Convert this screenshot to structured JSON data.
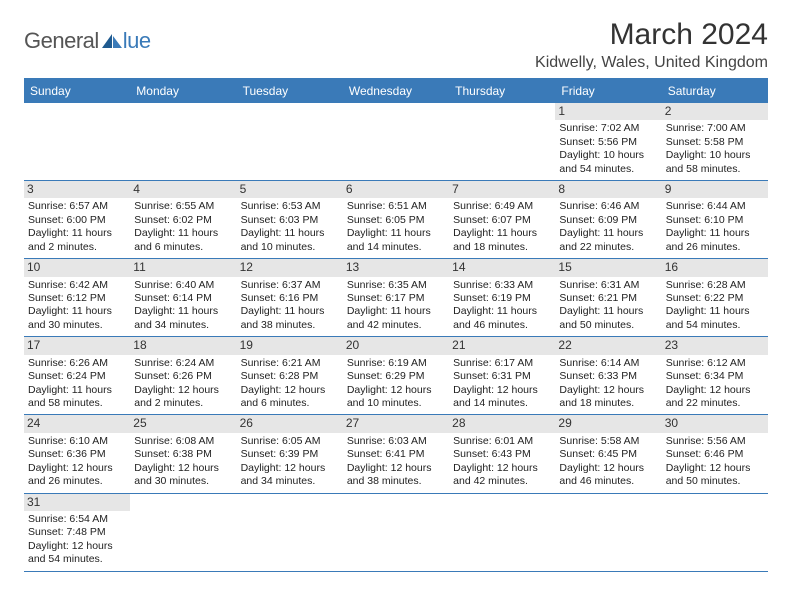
{
  "logo": {
    "word1": "General",
    "word2": "lue"
  },
  "title": "March 2024",
  "location": "Kidwelly, Wales, United Kingdom",
  "colors": {
    "accent": "#3a7ab8",
    "header_text": "#ffffff",
    "date_bg": "#e6e6e6",
    "text": "#333333"
  },
  "day_names": [
    "Sunday",
    "Monday",
    "Tuesday",
    "Wednesday",
    "Thursday",
    "Friday",
    "Saturday"
  ],
  "weeks": [
    [
      {
        "date": "",
        "empty": true
      },
      {
        "date": "",
        "empty": true
      },
      {
        "date": "",
        "empty": true
      },
      {
        "date": "",
        "empty": true
      },
      {
        "date": "",
        "empty": true
      },
      {
        "date": "1",
        "sunrise": "Sunrise: 7:02 AM",
        "sunset": "Sunset: 5:56 PM",
        "daylight": "Daylight: 10 hours and 54 minutes."
      },
      {
        "date": "2",
        "sunrise": "Sunrise: 7:00 AM",
        "sunset": "Sunset: 5:58 PM",
        "daylight": "Daylight: 10 hours and 58 minutes."
      }
    ],
    [
      {
        "date": "3",
        "sunrise": "Sunrise: 6:57 AM",
        "sunset": "Sunset: 6:00 PM",
        "daylight": "Daylight: 11 hours and 2 minutes."
      },
      {
        "date": "4",
        "sunrise": "Sunrise: 6:55 AM",
        "sunset": "Sunset: 6:02 PM",
        "daylight": "Daylight: 11 hours and 6 minutes."
      },
      {
        "date": "5",
        "sunrise": "Sunrise: 6:53 AM",
        "sunset": "Sunset: 6:03 PM",
        "daylight": "Daylight: 11 hours and 10 minutes."
      },
      {
        "date": "6",
        "sunrise": "Sunrise: 6:51 AM",
        "sunset": "Sunset: 6:05 PM",
        "daylight": "Daylight: 11 hours and 14 minutes."
      },
      {
        "date": "7",
        "sunrise": "Sunrise: 6:49 AM",
        "sunset": "Sunset: 6:07 PM",
        "daylight": "Daylight: 11 hours and 18 minutes."
      },
      {
        "date": "8",
        "sunrise": "Sunrise: 6:46 AM",
        "sunset": "Sunset: 6:09 PM",
        "daylight": "Daylight: 11 hours and 22 minutes."
      },
      {
        "date": "9",
        "sunrise": "Sunrise: 6:44 AM",
        "sunset": "Sunset: 6:10 PM",
        "daylight": "Daylight: 11 hours and 26 minutes."
      }
    ],
    [
      {
        "date": "10",
        "sunrise": "Sunrise: 6:42 AM",
        "sunset": "Sunset: 6:12 PM",
        "daylight": "Daylight: 11 hours and 30 minutes."
      },
      {
        "date": "11",
        "sunrise": "Sunrise: 6:40 AM",
        "sunset": "Sunset: 6:14 PM",
        "daylight": "Daylight: 11 hours and 34 minutes."
      },
      {
        "date": "12",
        "sunrise": "Sunrise: 6:37 AM",
        "sunset": "Sunset: 6:16 PM",
        "daylight": "Daylight: 11 hours and 38 minutes."
      },
      {
        "date": "13",
        "sunrise": "Sunrise: 6:35 AM",
        "sunset": "Sunset: 6:17 PM",
        "daylight": "Daylight: 11 hours and 42 minutes."
      },
      {
        "date": "14",
        "sunrise": "Sunrise: 6:33 AM",
        "sunset": "Sunset: 6:19 PM",
        "daylight": "Daylight: 11 hours and 46 minutes."
      },
      {
        "date": "15",
        "sunrise": "Sunrise: 6:31 AM",
        "sunset": "Sunset: 6:21 PM",
        "daylight": "Daylight: 11 hours and 50 minutes."
      },
      {
        "date": "16",
        "sunrise": "Sunrise: 6:28 AM",
        "sunset": "Sunset: 6:22 PM",
        "daylight": "Daylight: 11 hours and 54 minutes."
      }
    ],
    [
      {
        "date": "17",
        "sunrise": "Sunrise: 6:26 AM",
        "sunset": "Sunset: 6:24 PM",
        "daylight": "Daylight: 11 hours and 58 minutes."
      },
      {
        "date": "18",
        "sunrise": "Sunrise: 6:24 AM",
        "sunset": "Sunset: 6:26 PM",
        "daylight": "Daylight: 12 hours and 2 minutes."
      },
      {
        "date": "19",
        "sunrise": "Sunrise: 6:21 AM",
        "sunset": "Sunset: 6:28 PM",
        "daylight": "Daylight: 12 hours and 6 minutes."
      },
      {
        "date": "20",
        "sunrise": "Sunrise: 6:19 AM",
        "sunset": "Sunset: 6:29 PM",
        "daylight": "Daylight: 12 hours and 10 minutes."
      },
      {
        "date": "21",
        "sunrise": "Sunrise: 6:17 AM",
        "sunset": "Sunset: 6:31 PM",
        "daylight": "Daylight: 12 hours and 14 minutes."
      },
      {
        "date": "22",
        "sunrise": "Sunrise: 6:14 AM",
        "sunset": "Sunset: 6:33 PM",
        "daylight": "Daylight: 12 hours and 18 minutes."
      },
      {
        "date": "23",
        "sunrise": "Sunrise: 6:12 AM",
        "sunset": "Sunset: 6:34 PM",
        "daylight": "Daylight: 12 hours and 22 minutes."
      }
    ],
    [
      {
        "date": "24",
        "sunrise": "Sunrise: 6:10 AM",
        "sunset": "Sunset: 6:36 PM",
        "daylight": "Daylight: 12 hours and 26 minutes."
      },
      {
        "date": "25",
        "sunrise": "Sunrise: 6:08 AM",
        "sunset": "Sunset: 6:38 PM",
        "daylight": "Daylight: 12 hours and 30 minutes."
      },
      {
        "date": "26",
        "sunrise": "Sunrise: 6:05 AM",
        "sunset": "Sunset: 6:39 PM",
        "daylight": "Daylight: 12 hours and 34 minutes."
      },
      {
        "date": "27",
        "sunrise": "Sunrise: 6:03 AM",
        "sunset": "Sunset: 6:41 PM",
        "daylight": "Daylight: 12 hours and 38 minutes."
      },
      {
        "date": "28",
        "sunrise": "Sunrise: 6:01 AM",
        "sunset": "Sunset: 6:43 PM",
        "daylight": "Daylight: 12 hours and 42 minutes."
      },
      {
        "date": "29",
        "sunrise": "Sunrise: 5:58 AM",
        "sunset": "Sunset: 6:45 PM",
        "daylight": "Daylight: 12 hours and 46 minutes."
      },
      {
        "date": "30",
        "sunrise": "Sunrise: 5:56 AM",
        "sunset": "Sunset: 6:46 PM",
        "daylight": "Daylight: 12 hours and 50 minutes."
      }
    ],
    [
      {
        "date": "31",
        "sunrise": "Sunrise: 6:54 AM",
        "sunset": "Sunset: 7:48 PM",
        "daylight": "Daylight: 12 hours and 54 minutes."
      },
      {
        "date": "",
        "empty": true
      },
      {
        "date": "",
        "empty": true
      },
      {
        "date": "",
        "empty": true
      },
      {
        "date": "",
        "empty": true
      },
      {
        "date": "",
        "empty": true
      },
      {
        "date": "",
        "empty": true
      }
    ]
  ]
}
